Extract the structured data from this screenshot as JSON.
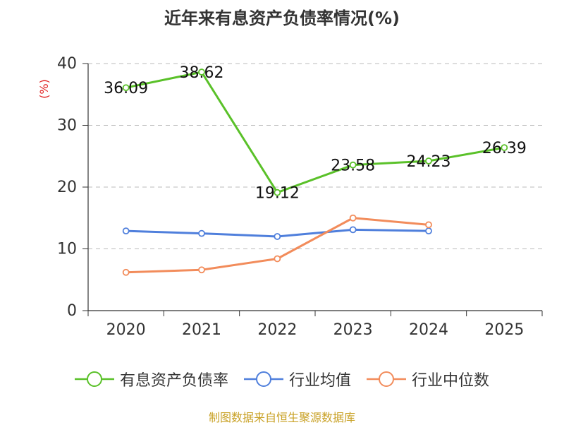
{
  "title": "近年来有息资产负债率情况(%)",
  "source": "制图数据来自恒生聚源数据库",
  "chart_data": {
    "type": "line",
    "title": "近年来有息资产负债率情况(%)",
    "ylabel": "(%)",
    "categories": [
      "2020",
      "2021",
      "2022",
      "2023",
      "2024",
      "2025"
    ],
    "ylim": [
      0,
      40
    ],
    "yticks": [
      0,
      10,
      20,
      30,
      40
    ],
    "grid": true,
    "legend_position": "bottom",
    "series": [
      {
        "name": "有息资产负债率",
        "color": "#5ac129",
        "values": [
          36.09,
          38.62,
          19.12,
          23.58,
          24.23,
          26.39
        ],
        "labels": [
          "36.09",
          "38.62",
          "19.12",
          "23.58",
          "24.23",
          "26.39"
        ]
      },
      {
        "name": "行业均值",
        "color": "#4f7fdc",
        "values": [
          12.9,
          12.5,
          12.0,
          13.1,
          12.9,
          null
        ]
      },
      {
        "name": "行业中位数",
        "color": "#f28c5b",
        "values": [
          6.2,
          6.6,
          8.4,
          15.0,
          13.9,
          null
        ]
      }
    ]
  }
}
